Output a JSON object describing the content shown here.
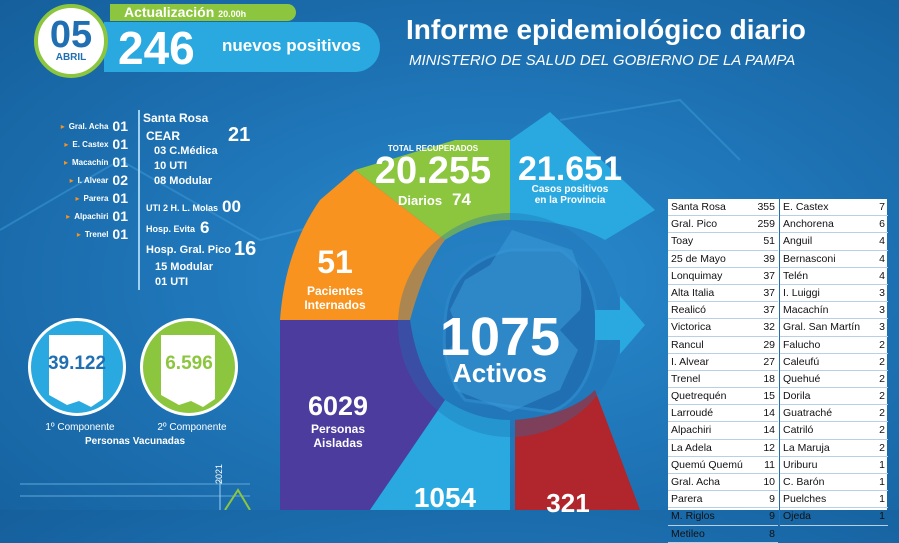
{
  "header": {
    "day": "05",
    "month": "ABRIL",
    "update_label": "Actualización",
    "update_time": "20.00h",
    "new_positives": "246",
    "new_positives_label": "nuevos positivos",
    "title": "Informe epidemiológico diario",
    "subtitle": "MINISTERIO DE SALUD DEL GOBIERNO DE LA PAMPA"
  },
  "left_localities": [
    {
      "name": "Gral. Acha",
      "value": "01"
    },
    {
      "name": "E. Castex",
      "value": "01"
    },
    {
      "name": "Macachín",
      "value": "01"
    },
    {
      "name": "I. Alvear",
      "value": "02"
    },
    {
      "name": "Parera",
      "value": "01"
    },
    {
      "name": "Alpachiri",
      "value": "01"
    },
    {
      "name": "Trenel",
      "value": "01"
    }
  ],
  "santa_rosa": {
    "title": "Santa Rosa",
    "cear_label": "CEAR",
    "cear_value": "21",
    "lines": [
      "03 C.Médica",
      "10 UTI",
      "08 Modular"
    ],
    "uti_label": "UTI 2 H. L. Molas",
    "uti_value": "00",
    "evita_label": "Hosp. Evita",
    "evita_value": "6",
    "pico_label": "Hosp. Gral. Pico",
    "pico_value": "16",
    "pico_lines": [
      "15 Modular",
      "01 UTI"
    ]
  },
  "vaccines": {
    "first": "39.122",
    "first_label": "1º Componente",
    "second": "6.596",
    "second_label": "2º Componente",
    "caption": "Personas Vacunadas"
  },
  "wheel": {
    "recovered_label": "TOTAL RECUPERADOS",
    "recovered": "20.255",
    "daily_label": "Diarios",
    "daily": "74",
    "cases": "21.651",
    "cases_label1": "Casos positivos",
    "cases_label2": "en la Provincia",
    "interned": "51",
    "interned_label1": "Pacientes",
    "interned_label2": "Internados",
    "isolated": "6029",
    "isolated_label1": "Personas",
    "isolated_label2": "Aisladas",
    "bottom_left": "1054",
    "bottom_right": "321",
    "active": "1075",
    "active_label": "Activos"
  },
  "mini_chart_year": "2021",
  "table_left": [
    [
      "Santa Rosa",
      "355"
    ],
    [
      "Gral. Pico",
      "259"
    ],
    [
      "Toay",
      "51"
    ],
    [
      "25 de Mayo",
      "39"
    ],
    [
      "Lonquimay",
      "37"
    ],
    [
      "Alta Italia",
      "37"
    ],
    [
      "Realicó",
      "37"
    ],
    [
      "Victorica",
      "32"
    ],
    [
      "Rancul",
      "29"
    ],
    [
      "I. Alvear",
      "27"
    ],
    [
      "Trenel",
      "18"
    ],
    [
      "Quetrequén",
      "15"
    ],
    [
      "Larroudé",
      "14"
    ],
    [
      "Alpachiri",
      "14"
    ],
    [
      "La Adela",
      "12"
    ],
    [
      "Quemú Quemú",
      "11"
    ],
    [
      "Gral. Acha",
      "10"
    ],
    [
      "Parera",
      "9"
    ],
    [
      "M. Riglos",
      "9"
    ],
    [
      "Metileo",
      "8"
    ]
  ],
  "table_right": [
    [
      "E. Castex",
      "7"
    ],
    [
      "Anchorena",
      "6"
    ],
    [
      "Anguil",
      "4"
    ],
    [
      "Bernasconi",
      "4"
    ],
    [
      "Telén",
      "4"
    ],
    [
      "I. Luiggi",
      "3"
    ],
    [
      "Macachín",
      "3"
    ],
    [
      "Gral. San Martín",
      "3"
    ],
    [
      "Falucho",
      "2"
    ],
    [
      "Caleufú",
      "2"
    ],
    [
      "Quehué",
      "2"
    ],
    [
      "Dorila",
      "2"
    ],
    [
      "Guatraché",
      "2"
    ],
    [
      "Catriló",
      "2"
    ],
    [
      "La Maruja",
      "2"
    ],
    [
      "Uriburu",
      "1"
    ],
    [
      "C. Barón",
      "1"
    ],
    [
      "Puelches",
      "1"
    ],
    [
      "Ojeda",
      "1"
    ]
  ],
  "colors": {
    "green": "#8cc63f",
    "lightblue": "#29a9e0",
    "orange": "#f7931e",
    "purple": "#4b3c9e",
    "red": "#b0262c",
    "center": "#1f6fb2"
  }
}
